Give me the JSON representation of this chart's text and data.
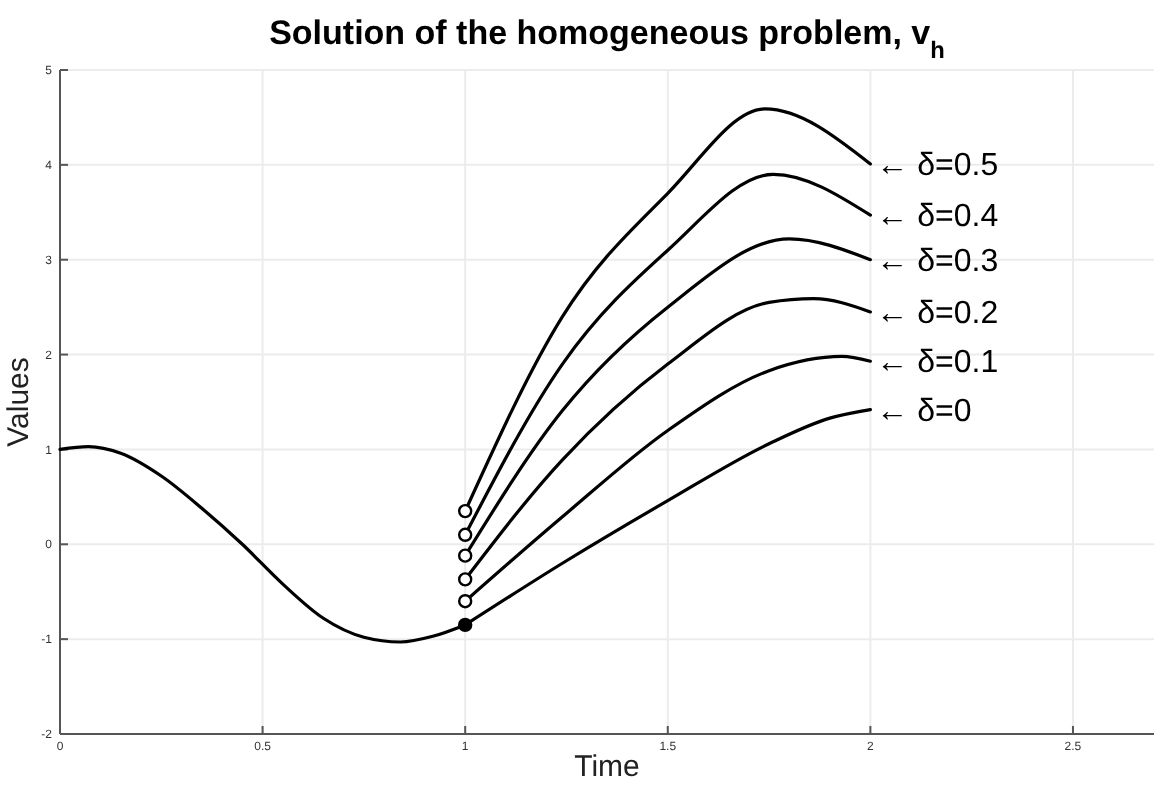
{
  "chart_data": {
    "type": "line",
    "title": "Solution of the homogeneous problem, v$_{h}$",
    "xlabel": "Time",
    "ylabel": "Values",
    "xlim": [
      0,
      2.7
    ],
    "ylim": [
      -2,
      5
    ],
    "xticks": [
      0,
      0.5,
      1,
      1.5,
      2,
      2.5
    ],
    "yticks": [
      -2,
      -1,
      0,
      1,
      2,
      3,
      4,
      5
    ],
    "grid": true,
    "marker": "none",
    "line_style": "solid",
    "series": [
      {
        "color": "#000000",
        "x": [
          0,
          0.07,
          0.15,
          0.25,
          0.35,
          0.45,
          0.55,
          0.65,
          0.75,
          0.84,
          0.92,
          1
        ],
        "values": [
          1,
          1.03,
          0.96,
          0.72,
          0.38,
          0,
          -0.42,
          -0.78,
          -0.98,
          -1.03,
          -0.97,
          -0.85
        ]
      },
      {
        "name": "← δ=0",
        "color": "#000000",
        "x": [
          1,
          1.24,
          1.5,
          1.75,
          1.9,
          2
        ],
        "values": [
          -0.85,
          -0.2,
          0.46,
          1.06,
          1.33,
          1.42
        ]
      },
      {
        "name": "← δ=0.1",
        "color": "#000000",
        "x": [
          1,
          1.24,
          1.5,
          1.75,
          1.93,
          2
        ],
        "values": [
          -0.6,
          0.29,
          1.2,
          1.83,
          1.98,
          1.93
        ]
      },
      {
        "name": "← δ=0.2",
        "color": "#000000",
        "x": [
          1,
          1.24,
          1.5,
          1.75,
          1.86,
          2
        ],
        "values": [
          -0.37,
          0.89,
          1.9,
          2.55,
          2.59,
          2.45
        ]
      },
      {
        "name": "← δ=0.3",
        "color": "#000000",
        "x": [
          1,
          1.24,
          1.5,
          1.8,
          2
        ],
        "values": [
          -0.12,
          1.41,
          2.5,
          3.22,
          3
        ]
      },
      {
        "name": "← δ=0.4",
        "color": "#000000",
        "x": [
          1,
          1.24,
          1.5,
          1.76,
          2
        ],
        "values": [
          0.1,
          1.9,
          3.1,
          3.9,
          3.47
        ]
      },
      {
        "name": "← δ=0.5",
        "color": "#000000",
        "x": [
          1,
          1.24,
          1.5,
          1.74,
          2
        ],
        "values": [
          0.35,
          2.4,
          3.7,
          4.59,
          4.01
        ]
      },
      {
        "type": "scatter",
        "marker": "circle",
        "color": "#ffffff",
        "x": [
          1,
          1,
          1,
          1,
          1
        ],
        "values": [
          -0.6,
          -0.37,
          -0.12,
          0.1,
          0.35
        ]
      },
      {
        "type": "scatter",
        "marker": "circle",
        "color": "#000000",
        "x": [
          1
        ],
        "values": [
          -0.85
        ]
      }
    ]
  }
}
